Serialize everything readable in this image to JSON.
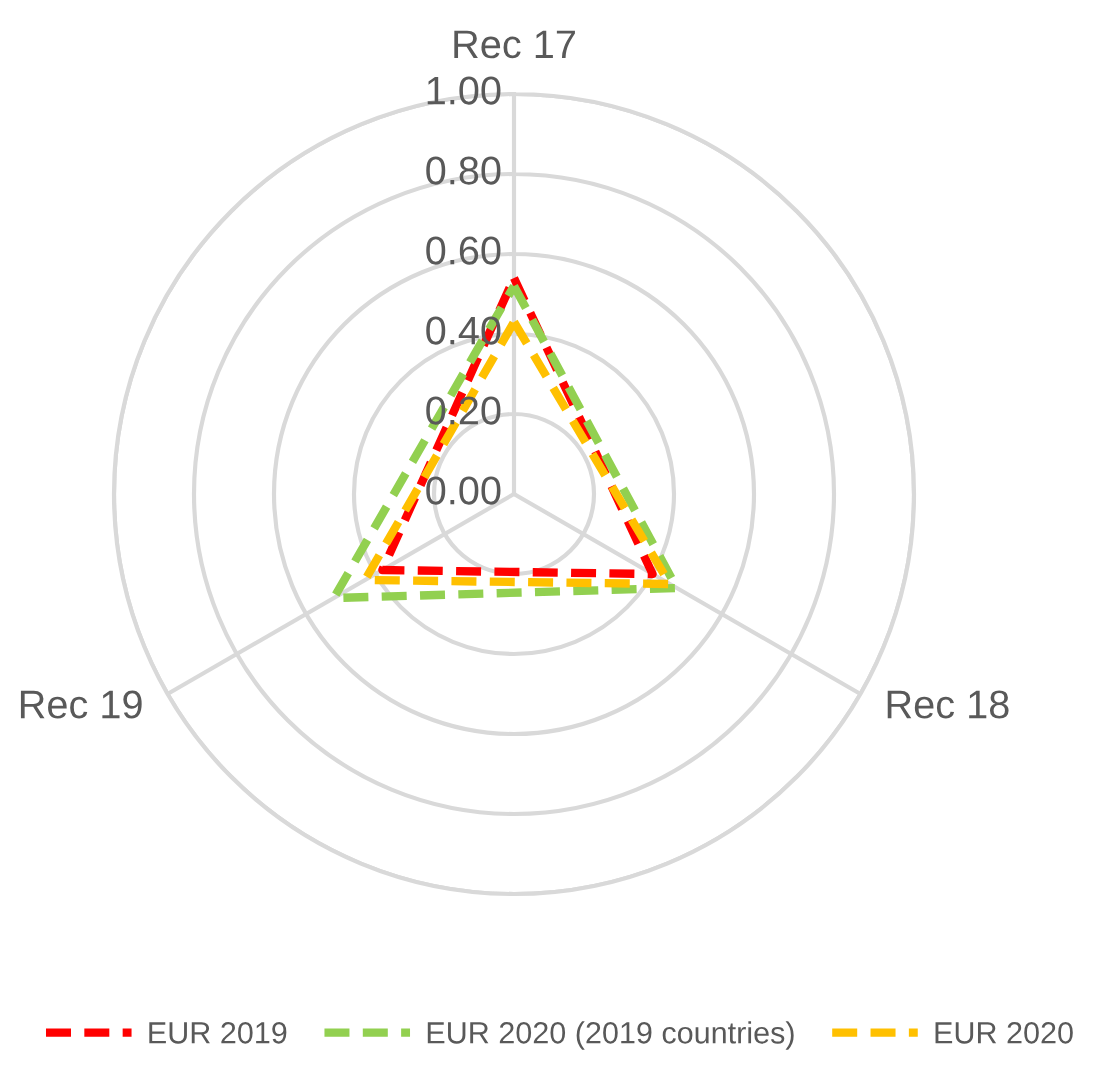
{
  "chart_data": {
    "type": "radar",
    "categories": [
      "Rec 17",
      "Rec 18",
      "Rec 19"
    ],
    "series": [
      {
        "name": "EUR 2019",
        "color": "#ff0000",
        "values": [
          0.54,
          0.4,
          0.38
        ]
      },
      {
        "name": "EUR 2020 (2019 countries)",
        "color": "#92d050",
        "values": [
          0.52,
          0.47,
          0.52
        ]
      },
      {
        "name": "EUR 2020",
        "color": "#ffc000",
        "values": [
          0.43,
          0.45,
          0.43
        ]
      }
    ],
    "ylim": [
      0,
      1
    ],
    "yticks": [
      {
        "value": 0,
        "label": "0.00"
      },
      {
        "value": 0.2,
        "label": "0.20"
      },
      {
        "value": 0.4,
        "label": "0.40"
      },
      {
        "value": 0.6,
        "label": "0.60"
      },
      {
        "value": 0.8,
        "label": "0.80"
      },
      {
        "value": 1,
        "label": "1.00"
      }
    ],
    "grid": true,
    "legend": "bottom",
    "line_style": "dashed",
    "marker": "none"
  }
}
